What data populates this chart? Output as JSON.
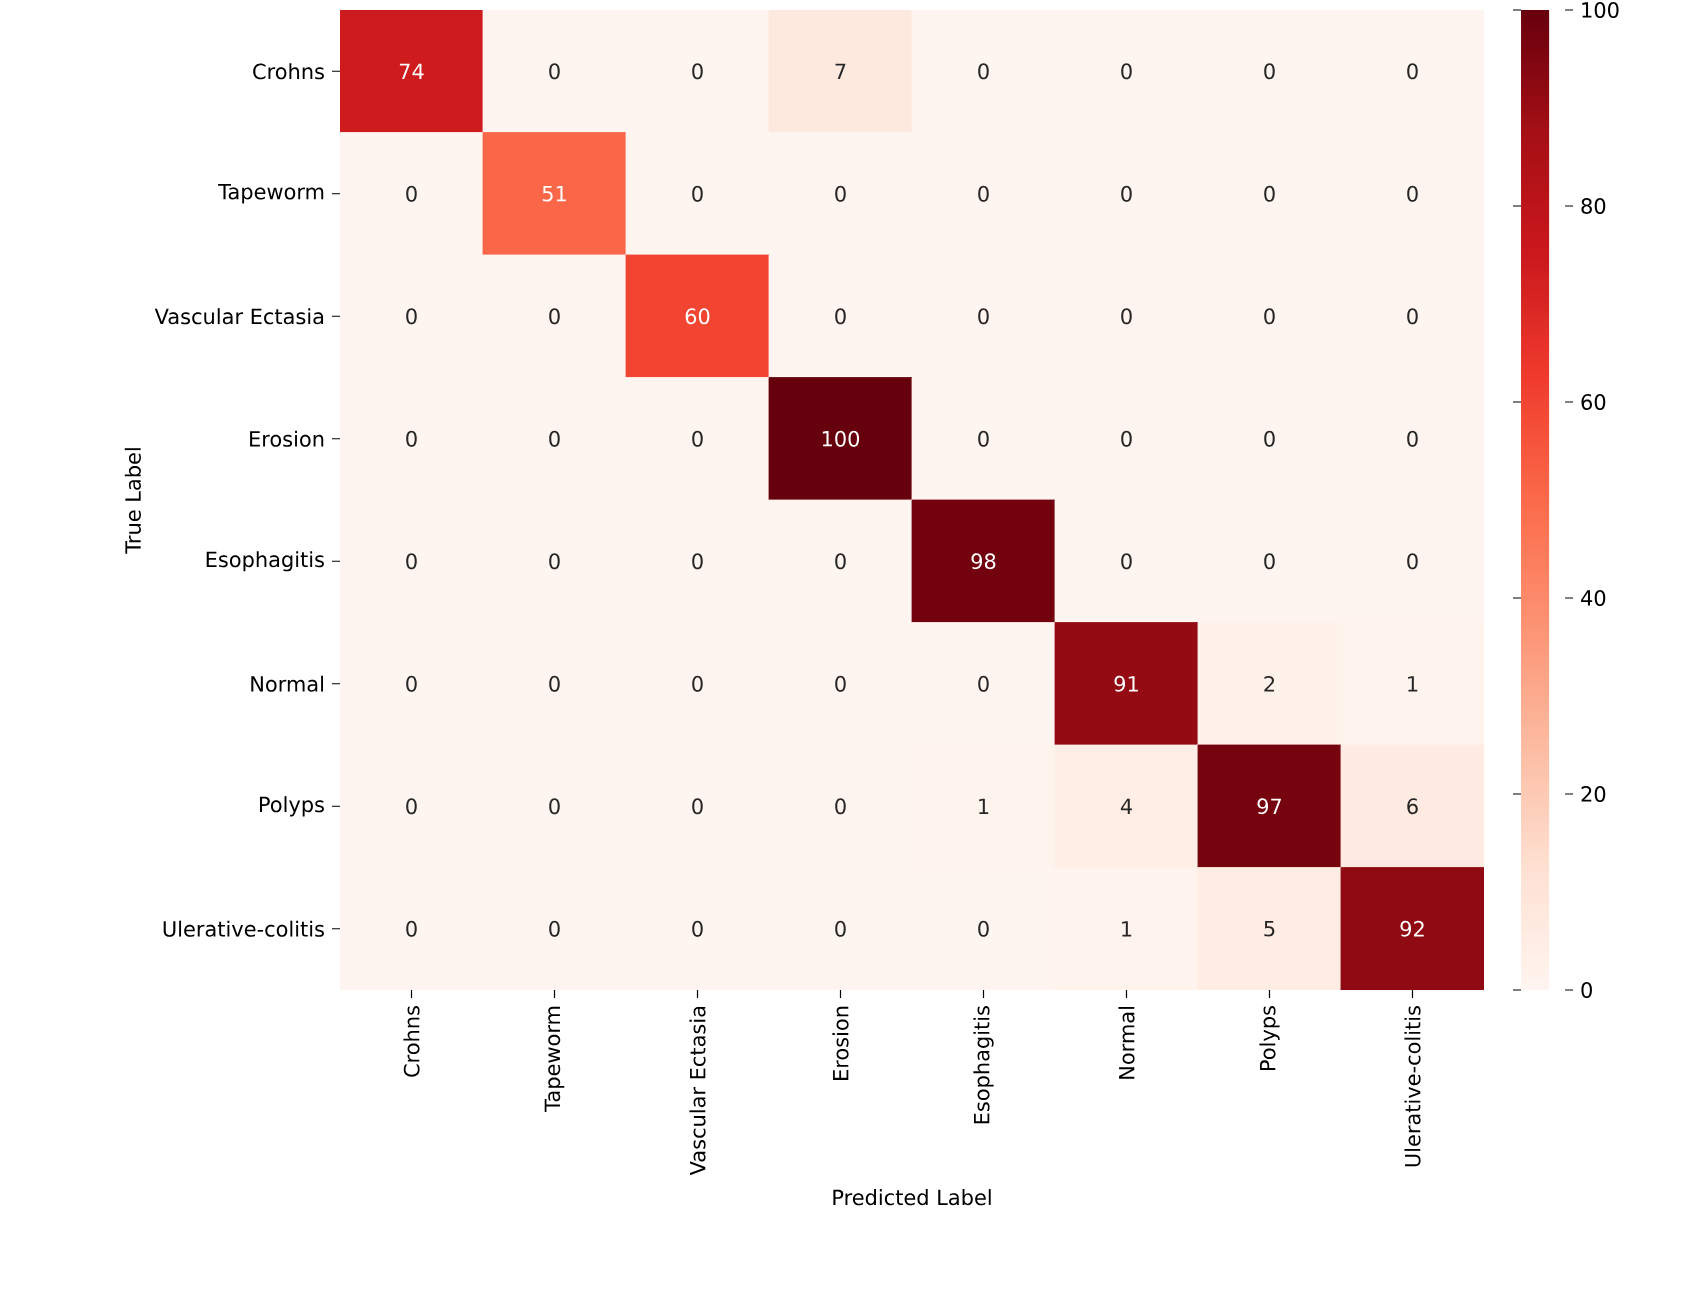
{
  "chart_data": {
    "type": "heatmap",
    "xlabel": "Predicted Label",
    "ylabel": "True Label",
    "categories": [
      "Crohns",
      "Tapeworm",
      "Vascular Ectasia",
      "Erosion",
      "Esophagitis",
      "Normal",
      "Polyps",
      "Ulerative-colitis"
    ],
    "y_categories": [
      "Crohns",
      "Tapeworm",
      "Vascular Ectasia",
      "Erosion",
      "Esophagitis",
      "Normal",
      "Polyps",
      "Ulerative-colitis"
    ],
    "cells": [
      [
        74,
        0,
        0,
        7,
        0,
        0,
        0,
        0
      ],
      [
        0,
        51,
        0,
        0,
        0,
        0,
        0,
        0
      ],
      [
        0,
        0,
        60,
        0,
        0,
        0,
        0,
        0
      ],
      [
        0,
        0,
        0,
        100,
        0,
        0,
        0,
        0
      ],
      [
        0,
        0,
        0,
        0,
        98,
        0,
        0,
        0
      ],
      [
        0,
        0,
        0,
        0,
        0,
        91,
        2,
        1
      ],
      [
        0,
        0,
        0,
        0,
        1,
        4,
        97,
        6
      ],
      [
        0,
        0,
        0,
        0,
        0,
        1,
        5,
        92
      ]
    ],
    "clim": [
      0,
      100
    ],
    "cticks": [
      0,
      20,
      40,
      60,
      80,
      100
    ],
    "data_labels": true
  }
}
